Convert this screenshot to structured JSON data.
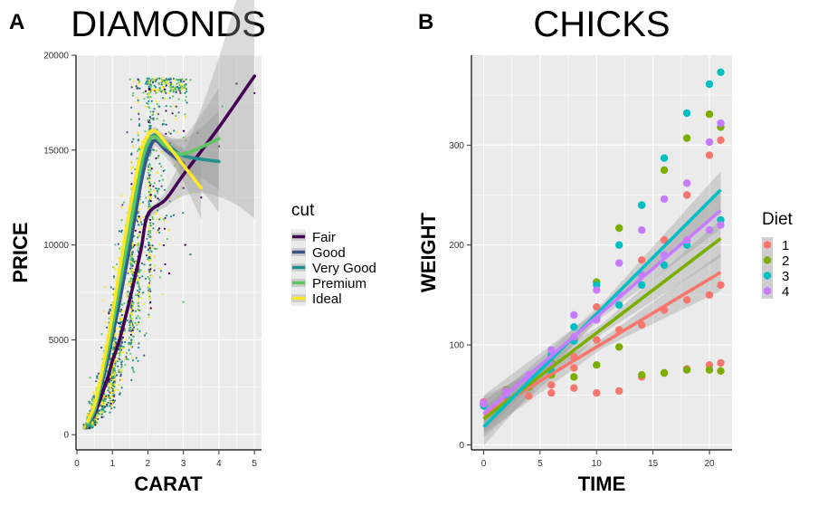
{
  "chart_data": [
    {
      "type": "scatter",
      "tag": "A",
      "title": "DIAMONDS",
      "xlabel": "CARAT",
      "ylabel": "PRICE",
      "xlim": [
        0,
        5.2
      ],
      "ylim": [
        -800,
        20000
      ],
      "xticks": [
        0,
        1,
        2,
        3,
        4,
        5
      ],
      "yticks": [
        0,
        5000,
        10000,
        15000,
        20000
      ],
      "grid": true,
      "smooth": "loess with confidence band",
      "legend": {
        "title": "cut",
        "position": "right"
      },
      "series": [
        {
          "name": "Fair",
          "color": "#440154",
          "points": [
            [
              0.3,
              600
            ],
            [
              0.5,
              1100
            ],
            [
              0.7,
              2100
            ],
            [
              0.9,
              3200
            ],
            [
              1.0,
              3900
            ],
            [
              1.2,
              5000
            ],
            [
              1.5,
              7200
            ],
            [
              1.8,
              9700
            ],
            [
              2.0,
              11600
            ],
            [
              2.5,
              12400
            ],
            [
              3.0,
              13700
            ],
            [
              4.0,
              16200
            ],
            [
              5.0,
              18900
            ]
          ]
        },
        {
          "name": "Good",
          "color": "#3b528b",
          "points": [
            [
              0.3,
              550
            ],
            [
              0.5,
              1200
            ],
            [
              0.7,
              2700
            ],
            [
              0.9,
              4200
            ],
            [
              1.0,
              5200
            ],
            [
              1.2,
              7000
            ],
            [
              1.5,
              10000
            ],
            [
              1.8,
              13200
            ],
            [
              2.0,
              14800
            ],
            [
              2.2,
              15500
            ],
            [
              2.5,
              15000
            ],
            [
              3.0,
              14300
            ]
          ]
        },
        {
          "name": "Very Good",
          "color": "#21908c",
          "points": [
            [
              0.3,
              550
            ],
            [
              0.5,
              1300
            ],
            [
              0.7,
              2900
            ],
            [
              0.9,
              4600
            ],
            [
              1.0,
              5600
            ],
            [
              1.2,
              7600
            ],
            [
              1.5,
              10700
            ],
            [
              1.8,
              13900
            ],
            [
              2.0,
              15300
            ],
            [
              2.2,
              15800
            ],
            [
              2.5,
              15400
            ],
            [
              3.0,
              14700
            ],
            [
              4.0,
              14400
            ]
          ]
        },
        {
          "name": "Premium",
          "color": "#5dc863",
          "points": [
            [
              0.3,
              600
            ],
            [
              0.5,
              1400
            ],
            [
              0.7,
              3000
            ],
            [
              0.9,
              4800
            ],
            [
              1.0,
              5800
            ],
            [
              1.2,
              7900
            ],
            [
              1.5,
              11000
            ],
            [
              1.8,
              14200
            ],
            [
              2.0,
              15400
            ],
            [
              2.2,
              15700
            ],
            [
              2.5,
              15200
            ],
            [
              3.0,
              14800
            ],
            [
              4.0,
              15600
            ]
          ]
        },
        {
          "name": "Ideal",
          "color": "#fde725",
          "points": [
            [
              0.3,
              700
            ],
            [
              0.5,
              1600
            ],
            [
              0.7,
              3300
            ],
            [
              0.9,
              5300
            ],
            [
              1.0,
              6400
            ],
            [
              1.2,
              8700
            ],
            [
              1.5,
              12000
            ],
            [
              1.8,
              14800
            ],
            [
              2.0,
              15800
            ],
            [
              2.2,
              16000
            ],
            [
              2.5,
              15400
            ],
            [
              3.0,
              14200
            ],
            [
              3.5,
              13000
            ]
          ]
        }
      ]
    },
    {
      "type": "scatter",
      "tag": "B",
      "title": "CHICKS",
      "xlabel": "TIME",
      "ylabel": "WEIGHT",
      "xlim": [
        -1,
        22
      ],
      "ylim": [
        -5,
        390
      ],
      "xticks": [
        0,
        5,
        10,
        15,
        20
      ],
      "yticks": [
        0,
        100,
        200,
        300
      ],
      "grid": true,
      "smooth": "linear fit with confidence band",
      "legend": {
        "title": "Diet",
        "position": "right"
      },
      "series": [
        {
          "name": "1",
          "color": "#f8766d",
          "fit": {
            "intercept": 30,
            "slope": 6.8
          },
          "points": [
            [
              0,
              42
            ],
            [
              0,
              40
            ],
            [
              0,
              43
            ],
            [
              2,
              48
            ],
            [
              2,
              53
            ],
            [
              2,
              46
            ],
            [
              4,
              49
            ],
            [
              4,
              59
            ],
            [
              4,
              64
            ],
            [
              6,
              60
            ],
            [
              6,
              74
            ],
            [
              6,
              52
            ],
            [
              8,
              57
            ],
            [
              8,
              88
            ],
            [
              8,
              77
            ],
            [
              10,
              52
            ],
            [
              10,
              105
            ],
            [
              10,
              138
            ],
            [
              12,
              54
            ],
            [
              12,
              115
            ],
            [
              12,
              151
            ],
            [
              14,
              68
            ],
            [
              14,
              120
            ],
            [
              14,
              185
            ],
            [
              16,
              72
            ],
            [
              16,
              135
            ],
            [
              16,
              205
            ],
            [
              18,
              76
            ],
            [
              18,
              145
            ],
            [
              18,
              250
            ],
            [
              20,
              80
            ],
            [
              20,
              150
            ],
            [
              20,
              290
            ],
            [
              21,
              82
            ],
            [
              21,
              160
            ],
            [
              21,
              305
            ]
          ]
        },
        {
          "name": "2",
          "color": "#7cae00",
          "fit": {
            "intercept": 26,
            "slope": 8.6
          },
          "points": [
            [
              0,
              41
            ],
            [
              0,
              40
            ],
            [
              2,
              50
            ],
            [
              2,
              55
            ],
            [
              4,
              58
            ],
            [
              4,
              66
            ],
            [
              6,
              70
            ],
            [
              6,
              82
            ],
            [
              8,
              68
            ],
            [
              8,
              106
            ],
            [
              10,
              80
            ],
            [
              10,
              163
            ],
            [
              12,
              98
            ],
            [
              12,
              217
            ],
            [
              14,
              70
            ],
            [
              14,
              240
            ],
            [
              16,
              72
            ],
            [
              16,
              275
            ],
            [
              18,
              75
            ],
            [
              18,
              307
            ],
            [
              20,
              75
            ],
            [
              20,
              331
            ],
            [
              21,
              74
            ],
            [
              21,
              318
            ]
          ]
        },
        {
          "name": "3",
          "color": "#00bfc4",
          "fit": {
            "intercept": 18,
            "slope": 11.3
          },
          "points": [
            [
              0,
              41
            ],
            [
              0,
              39
            ],
            [
              2,
              50
            ],
            [
              2,
              52
            ],
            [
              4,
              62
            ],
            [
              4,
              68
            ],
            [
              6,
              74
            ],
            [
              6,
              90
            ],
            [
              8,
              104
            ],
            [
              8,
              118
            ],
            [
              10,
              128
            ],
            [
              10,
              160
            ],
            [
              12,
              140
            ],
            [
              12,
              200
            ],
            [
              14,
              160
            ],
            [
              14,
              240
            ],
            [
              16,
              180
            ],
            [
              16,
              287
            ],
            [
              18,
              200
            ],
            [
              18,
              332
            ],
            [
              20,
              215
            ],
            [
              20,
              361
            ],
            [
              21,
              225
            ],
            [
              21,
              373
            ]
          ]
        },
        {
          "name": "4",
          "color": "#c77cff",
          "fit": {
            "intercept": 31,
            "slope": 9.7
          },
          "points": [
            [
              0,
              41
            ],
            [
              0,
              42
            ],
            [
              2,
              51
            ],
            [
              2,
              54
            ],
            [
              4,
              64
            ],
            [
              4,
              70
            ],
            [
              6,
              80
            ],
            [
              6,
              95
            ],
            [
              8,
              108
            ],
            [
              8,
              130
            ],
            [
              10,
              125
            ],
            [
              10,
              155
            ],
            [
              12,
              150
            ],
            [
              12,
              182
            ],
            [
              14,
              170
            ],
            [
              14,
              215
            ],
            [
              16,
              190
            ],
            [
              16,
              246
            ],
            [
              18,
              205
            ],
            [
              18,
              262
            ],
            [
              20,
              215
            ],
            [
              20,
              303
            ],
            [
              21,
              220
            ],
            [
              21,
              322
            ]
          ]
        }
      ]
    }
  ]
}
